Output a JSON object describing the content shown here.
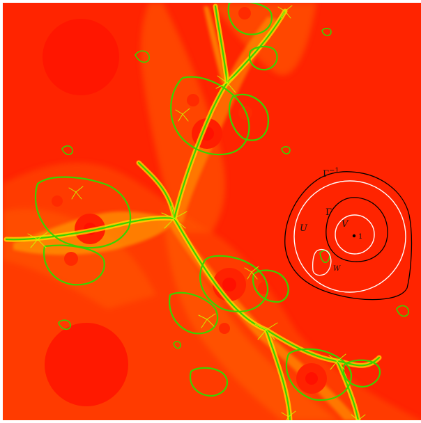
{
  "figure": {
    "labels": {
      "gamma_inverse_base": "Γ",
      "gamma_inverse_exponent": "−1",
      "gamma": "Γ",
      "u": "U",
      "v": "V",
      "w": "W",
      "point": "1"
    },
    "colors": {
      "background_red": "#ff1a00",
      "field_red_orange": "#ff4a00",
      "field_orange": "#ff7a00",
      "field_amber": "#ffa800",
      "field_yellow": "#ffe000",
      "julia_set_green": "#39d400",
      "julia_set_yellowgreen": "#c8ff00",
      "white_curves": "#ffffff",
      "black_curves": "#000000"
    }
  }
}
